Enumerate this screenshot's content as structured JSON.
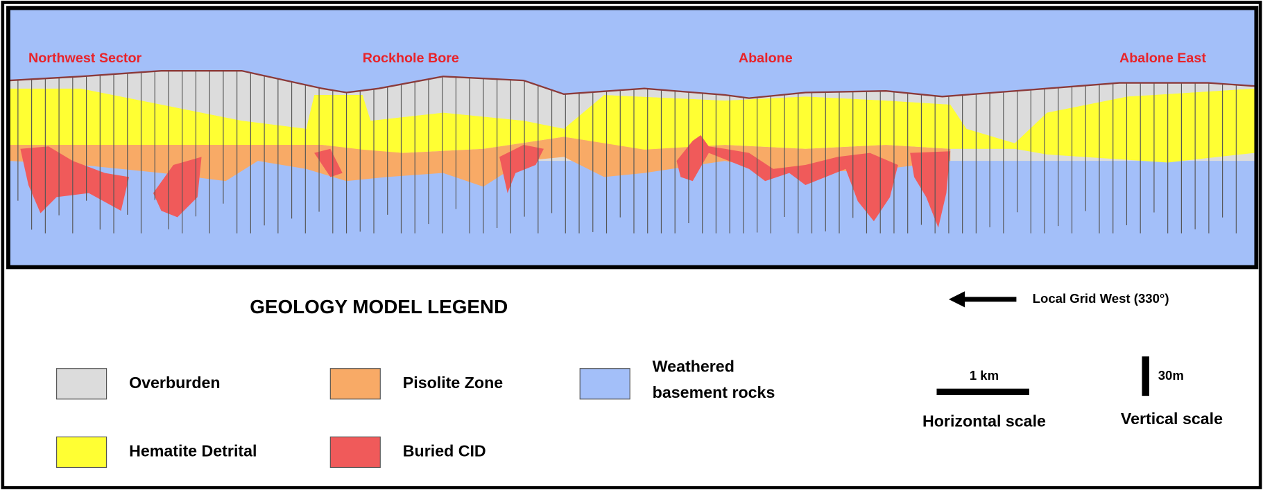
{
  "sections": [
    "Northwest Sector",
    "Rockhole Bore",
    "Abalone",
    "Abalone East"
  ],
  "legend": {
    "title": "GEOLOGY MODEL LEGEND",
    "items": [
      {
        "label": [
          "Overburden"
        ],
        "color": "#dcdcdc"
      },
      {
        "label": [
          "Hematite Detrital"
        ],
        "color": "#ffff33"
      },
      {
        "label": [
          "Pisolite Zone"
        ],
        "color": "#f8aa66"
      },
      {
        "label": [
          "Buried CID"
        ],
        "color": "#f05a5a"
      },
      {
        "label": [
          "Weathered",
          "basement rocks"
        ],
        "color": "#a3bff9"
      }
    ]
  },
  "direction": "Local Grid West (330°)",
  "horizontal_scale": {
    "length": "1 km",
    "label": "Horizontal scale"
  },
  "vertical_scale": {
    "length": "30m",
    "label": "Vertical scale"
  }
}
